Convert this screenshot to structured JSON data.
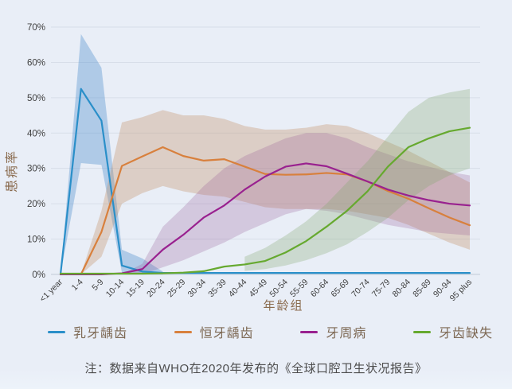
{
  "chart": {
    "note": "注：数据来自WHO在2020年发布的《全球口腔卫生状况报告》",
    "colors": {
      "background": "#e9eef7",
      "grid": "#d8dee9",
      "axis": "#c2c9d6",
      "tick_text": "#3f3f3f",
      "axis_title_text": "#8a6b4e",
      "note_text": "#4c4c4c"
    }
  },
  "chart_data": {
    "type": "line",
    "title": "",
    "xlabel": "年龄组",
    "ylabel": "患病率",
    "ylim": [
      0,
      70
    ],
    "grid": true,
    "legend_position": "bottom",
    "y_ticks": [
      0,
      10,
      20,
      30,
      40,
      50,
      60,
      70
    ],
    "y_tick_labels": [
      "0%",
      "10%",
      "20%",
      "30%",
      "40%",
      "50%",
      "60%",
      "70%"
    ],
    "categories": [
      "<1 year",
      "1-4",
      "5-9",
      "10-14",
      "15-19",
      "20-24",
      "25-29",
      "30-34",
      "35-39",
      "40-44",
      "45-49",
      "50-54",
      "55-59",
      "60-64",
      "65-69",
      "70-74",
      "75-79",
      "80-84",
      "85-89",
      "90-94",
      "95 plus"
    ],
    "series": [
      {
        "id": "deciduous-caries",
        "name": "乳牙龋齿",
        "color": "#2a8fc9",
        "band_color": "rgba(88,148,208,0.40)",
        "values": [
          0,
          52.5,
          43.5,
          2.5,
          0.8,
          0.4,
          0.4,
          0.4,
          0.4,
          0.4,
          0.4,
          0.4,
          0.4,
          0.4,
          0.4,
          0.4,
          0.4,
          0.4,
          0.4,
          0.4,
          0.4
        ],
        "band_low": [
          0,
          31.5,
          31,
          0.5,
          0,
          0,
          null,
          null,
          null,
          null,
          null,
          null,
          null,
          null,
          null,
          null,
          null,
          null,
          null,
          null,
          null
        ],
        "band_high": [
          0,
          68,
          58.5,
          7,
          4.5,
          0.8,
          null,
          null,
          null,
          null,
          null,
          null,
          null,
          null,
          null,
          null,
          null,
          null,
          null,
          null,
          null
        ]
      },
      {
        "id": "permanent-caries",
        "name": "恒牙龋齿",
        "color": "#d8803d",
        "band_color": "rgba(193,141,96,0.32)",
        "values": [
          0,
          0,
          12,
          30.7,
          33.4,
          36,
          33.5,
          32.2,
          32.6,
          30.5,
          28.4,
          28.2,
          28.3,
          28.7,
          28.3,
          26.3,
          23.6,
          21.4,
          18.7,
          16.1,
          13.9
        ],
        "band_low": [
          null,
          0,
          5,
          20,
          23,
          25,
          23.5,
          22.5,
          22,
          20.5,
          19,
          18.5,
          18.5,
          18.5,
          18,
          17,
          16,
          14,
          11.5,
          9,
          7
        ],
        "band_high": [
          null,
          0,
          18,
          43,
          44.5,
          46.5,
          45,
          45,
          44,
          42,
          41,
          41,
          41.5,
          42.5,
          42,
          40,
          37.5,
          35,
          32,
          29,
          26
        ]
      },
      {
        "id": "periodontal-disease",
        "name": "牙周病",
        "color": "#99218f",
        "band_color": "rgba(148,86,146,0.25)",
        "values": [
          0,
          0,
          0,
          0.3,
          1.5,
          7,
          11.2,
          16.1,
          19.5,
          24,
          27.7,
          30.5,
          31.4,
          30.6,
          28.5,
          26.3,
          24,
          22.3,
          21,
          20,
          19.5
        ],
        "band_low": [
          null,
          null,
          null,
          0,
          0,
          2,
          4,
          6.5,
          9,
          12,
          14.5,
          17,
          18.5,
          18,
          17,
          15.5,
          14,
          13,
          12,
          11.5,
          11
        ],
        "band_high": [
          null,
          null,
          null,
          0,
          3,
          13.5,
          19,
          25,
          30,
          33.5,
          36,
          38.5,
          40,
          40,
          38.5,
          36,
          34,
          32,
          30.5,
          29,
          28
        ]
      },
      {
        "id": "tooth-loss",
        "name": "牙齿缺失",
        "color": "#66a92f",
        "band_color": "rgba(125,164,105,0.28)",
        "values": [
          0.2,
          0.2,
          0.2,
          0.2,
          0.2,
          0.3,
          0.5,
          0.9,
          2.2,
          2.8,
          3.8,
          6.2,
          9.4,
          13.5,
          18,
          23.5,
          30.5,
          36,
          38.5,
          40.5,
          41.5
        ],
        "band_low": [
          null,
          null,
          null,
          null,
          null,
          null,
          null,
          null,
          null,
          1,
          1.5,
          2.5,
          4,
          6,
          8.5,
          12,
          16,
          21,
          25,
          28,
          30
        ],
        "band_high": [
          null,
          null,
          null,
          null,
          null,
          null,
          null,
          null,
          null,
          5,
          7.5,
          11,
          15,
          20,
          26,
          32,
          39,
          46,
          50,
          51.5,
          52.5
        ]
      }
    ]
  }
}
